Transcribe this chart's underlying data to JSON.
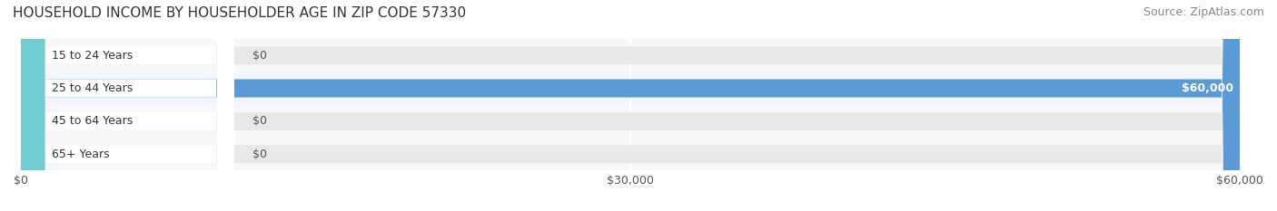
{
  "title": "HOUSEHOLD INCOME BY HOUSEHOLDER AGE IN ZIP CODE 57330",
  "source": "Source: ZipAtlas.com",
  "categories": [
    "15 to 24 Years",
    "25 to 44 Years",
    "45 to 64 Years",
    "65+ Years"
  ],
  "values": [
    0,
    60000,
    0,
    0
  ],
  "bar_colors": [
    "#f4a0a8",
    "#5b9bd5",
    "#c9a0dc",
    "#70cdd4"
  ],
  "label_bg_colors": [
    "#f4a0a8",
    "#5b9bd5",
    "#c9a0dc",
    "#70cdd4"
  ],
  "bar_bg_color": "#f0f0f0",
  "row_bg_colors": [
    "#f7f7f7",
    "#f0f5ff",
    "#f7f7f7",
    "#f7f7f7"
  ],
  "xlim": [
    0,
    60000
  ],
  "xticks": [
    0,
    30000,
    60000
  ],
  "xticklabels": [
    "$0",
    "$30,000",
    "$60,000"
  ],
  "value_labels": [
    "$0",
    "$60,000",
    "$0",
    "$0"
  ],
  "title_fontsize": 11,
  "source_fontsize": 9,
  "label_fontsize": 9,
  "tick_fontsize": 9
}
